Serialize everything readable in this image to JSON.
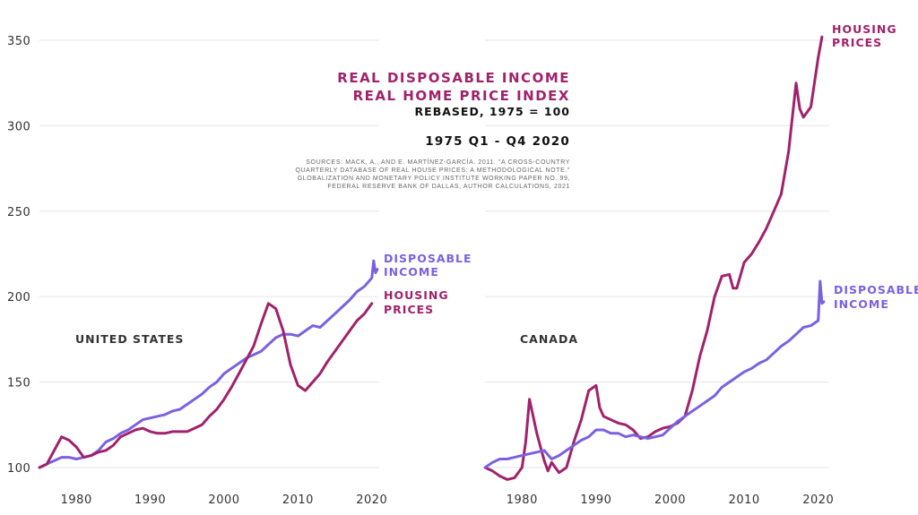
{
  "colors": {
    "housing": "#a0226b",
    "income": "#7b61e0",
    "grid": "#e6e6e6",
    "text": "#333333"
  },
  "title": {
    "line1": "REAL DISPOSABLE INCOME",
    "line2": "REAL HOME PRICE INDEX",
    "line3": "REBASED, 1975 = 100",
    "period": "1975 Q1 - Q4 2020",
    "sources": [
      "SOURCES: MACK, A., AND E. MARTÍNEZ-GARCÍA. 2011. \"A CROSS-COUNTRY",
      "QUARTERLY DATABASE OF REAL HOUSE PRICES: A METHODOLOGICAL NOTE.\"",
      "GLOBALIZATION AND MONETARY POLICY INSTITUTE WORKING PAPER NO. 99,",
      "FEDERAL RESERVE BANK OF DALLAS, AUTHOR CALCULATIONS, 2021"
    ]
  },
  "chart_data": [
    {
      "type": "line",
      "panel": "UNITED STATES",
      "xlim": [
        1975,
        2021
      ],
      "ylim": [
        92,
        355
      ],
      "yticks": [
        100,
        150,
        200,
        250,
        300,
        350
      ],
      "xticks": [
        1980,
        1990,
        2000,
        2010,
        2020
      ],
      "grid": true,
      "series": [
        {
          "name": "DISPOSABLE INCOME",
          "label_lines": [
            "DISPOSABLE",
            "INCOME"
          ],
          "color": "#7b61e0",
          "x": [
            1975,
            1976,
            1977,
            1978,
            1979,
            1980,
            1981,
            1982,
            1983,
            1984,
            1985,
            1986,
            1987,
            1988,
            1989,
            1990,
            1991,
            1992,
            1993,
            1994,
            1995,
            1996,
            1997,
            1998,
            1999,
            2000,
            2001,
            2002,
            2003,
            2004,
            2005,
            2006,
            2007,
            2008,
            2009,
            2010,
            2011,
            2012,
            2013,
            2014,
            2015,
            2016,
            2017,
            2018,
            2019,
            2020,
            2020.25,
            2020.5,
            2020.75
          ],
          "values": [
            100,
            102,
            104,
            106,
            106,
            105,
            106,
            107,
            110,
            115,
            117,
            120,
            122,
            125,
            128,
            129,
            130,
            131,
            133,
            134,
            137,
            140,
            143,
            147,
            150,
            155,
            158,
            161,
            164,
            166,
            168,
            172,
            176,
            178,
            178,
            177,
            180,
            183,
            182,
            186,
            190,
            194,
            198,
            203,
            206,
            211,
            221,
            214,
            216
          ]
        },
        {
          "name": "HOUSING PRICES",
          "label_lines": [
            "HOUSING",
            "PRICES"
          ],
          "color": "#a0226b",
          "x": [
            1975,
            1976,
            1977,
            1978,
            1979,
            1980,
            1981,
            1982,
            1983,
            1984,
            1985,
            1986,
            1987,
            1988,
            1989,
            1990,
            1991,
            1992,
            1993,
            1994,
            1995,
            1996,
            1997,
            1998,
            1999,
            2000,
            2001,
            2002,
            2003,
            2004,
            2005,
            2006,
            2007,
            2008,
            2009,
            2010,
            2011,
            2012,
            2013,
            2014,
            2015,
            2016,
            2017,
            2018,
            2019,
            2020
          ],
          "values": [
            100,
            102,
            110,
            118,
            116,
            112,
            106,
            107,
            109,
            110,
            113,
            118,
            120,
            122,
            123,
            121,
            120,
            120,
            121,
            121,
            121,
            123,
            125,
            130,
            134,
            140,
            147,
            155,
            163,
            171,
            184,
            196,
            193,
            180,
            160,
            148,
            145,
            150,
            155,
            162,
            168,
            174,
            180,
            186,
            190,
            196
          ]
        }
      ]
    },
    {
      "type": "line",
      "panel": "CANADA",
      "xlim": [
        1975,
        2021
      ],
      "ylim": [
        92,
        355
      ],
      "yticks": [
        100,
        150,
        200,
        250,
        300,
        350
      ],
      "xticks": [
        1980,
        1990,
        2000,
        2010,
        2020
      ],
      "grid": true,
      "series": [
        {
          "name": "HOUSING PRICES",
          "label_lines": [
            "HOUSING",
            "PRICES"
          ],
          "color": "#a0226b",
          "x": [
            1975,
            1976,
            1977,
            1978,
            1979,
            1980,
            1980.5,
            1981,
            1982,
            1983,
            1983.5,
            1984,
            1985,
            1986,
            1987,
            1988,
            1989,
            1990,
            1990.5,
            1991,
            1992,
            1993,
            1994,
            1995,
            1996,
            1997,
            1998,
            1999,
            2000,
            2001,
            2002,
            2003,
            2004,
            2005,
            2006,
            2007,
            2008,
            2008.5,
            2009,
            2010,
            2011,
            2012,
            2013,
            2014,
            2015,
            2016,
            2017,
            2017.5,
            2018,
            2019,
            2020,
            2020.5
          ],
          "values": [
            100,
            98,
            95,
            93,
            94,
            100,
            115,
            140,
            120,
            104,
            98,
            103,
            97,
            100,
            115,
            128,
            145,
            148,
            135,
            130,
            128,
            126,
            125,
            122,
            117,
            118,
            121,
            123,
            124,
            126,
            130,
            145,
            165,
            180,
            200,
            212,
            213,
            205,
            205,
            220,
            225,
            232,
            240,
            250,
            260,
            285,
            325,
            310,
            305,
            311,
            340,
            352
          ]
        },
        {
          "name": "DISPOSABLE INCOME",
          "label_lines": [
            "DISPOSABLE",
            "INCOME"
          ],
          "color": "#7b61e0",
          "x": [
            1975,
            1976,
            1977,
            1978,
            1979,
            1980,
            1981,
            1982,
            1983,
            1984,
            1985,
            1986,
            1987,
            1988,
            1989,
            1990,
            1991,
            1992,
            1993,
            1994,
            1995,
            1996,
            1997,
            1998,
            1999,
            2000,
            2001,
            2002,
            2003,
            2004,
            2005,
            2006,
            2007,
            2008,
            2009,
            2010,
            2011,
            2012,
            2013,
            2014,
            2015,
            2016,
            2017,
            2018,
            2019,
            2020,
            2020.25,
            2020.5,
            2020.75
          ],
          "values": [
            100,
            103,
            105,
            105,
            106,
            107,
            108,
            109,
            110,
            105,
            107,
            110,
            113,
            116,
            118,
            122,
            122,
            120,
            120,
            118,
            119,
            118,
            117,
            118,
            119,
            123,
            127,
            130,
            133,
            136,
            139,
            142,
            147,
            150,
            153,
            156,
            158,
            161,
            163,
            167,
            171,
            174,
            178,
            182,
            183,
            186,
            209,
            196,
            197
          ]
        }
      ]
    }
  ]
}
